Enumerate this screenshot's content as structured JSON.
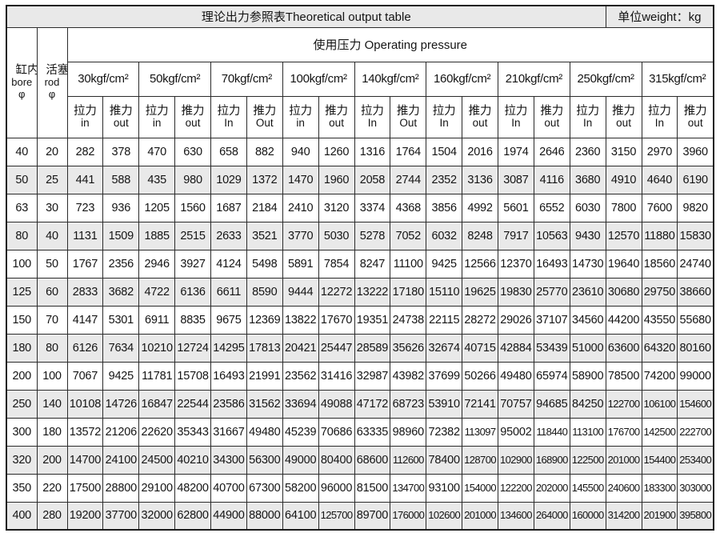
{
  "header": {
    "title": "理论出力参照表Theoretical output table",
    "unit_label": "单位weight：kg"
  },
  "table": {
    "bore_cn": "缸内径",
    "bore_en": "bore",
    "bore_sym": "φ",
    "rod_cn": "活塞杆",
    "rod_en": "rod",
    "rod_sym": "φ",
    "pressure_header": "使用压力 Operating pressure",
    "pressure_groups": [
      {
        "label": "30kgf/cm²",
        "pull": "拉力",
        "pull_sub": "in",
        "push": "推力",
        "push_sub": "out"
      },
      {
        "label": "50kgf/cm²",
        "pull": "拉力",
        "pull_sub": "in",
        "push": "推力",
        "push_sub": "out"
      },
      {
        "label": "70kgf/cm²",
        "pull": "拉力",
        "pull_sub": "In",
        "push": "推力",
        "push_sub": "Out"
      },
      {
        "label": "100kgf/cm²",
        "pull": "拉力",
        "pull_sub": "in",
        "push": "推力",
        "push_sub": "out"
      },
      {
        "label": "140kgf/cm²",
        "pull": "拉力",
        "pull_sub": "In",
        "push": "推力",
        "push_sub": "Out"
      },
      {
        "label": "160kgf/cm²",
        "pull": "拉力",
        "pull_sub": "In",
        "push": "推力",
        "push_sub": "out"
      },
      {
        "label": "210kgf/cm²",
        "pull": "拉力",
        "pull_sub": "In",
        "push": "推力",
        "push_sub": "out"
      },
      {
        "label": "250kgf/cm²",
        "pull": "拉力",
        "pull_sub": "In",
        "push": "推力",
        "push_sub": "out"
      },
      {
        "label": "315kgf/cm²",
        "pull": "拉力",
        "pull_sub": "In",
        "push": "推力",
        "push_sub": "out"
      }
    ],
    "rows": [
      {
        "bore": "40",
        "rod": "20",
        "values": [
          "282",
          "378",
          "470",
          "630",
          "658",
          "882",
          "940",
          "1260",
          "1316",
          "1764",
          "1504",
          "2016",
          "1974",
          "2646",
          "2360",
          "3150",
          "2970",
          "3960"
        ]
      },
      {
        "bore": "50",
        "rod": "25",
        "values": [
          "441",
          "588",
          "435",
          "980",
          "1029",
          "1372",
          "1470",
          "1960",
          "2058",
          "2744",
          "2352",
          "3136",
          "3087",
          "4116",
          "3680",
          "4910",
          "4640",
          "6190"
        ]
      },
      {
        "bore": "63",
        "rod": "30",
        "values": [
          "723",
          "936",
          "1205",
          "1560",
          "1687",
          "2184",
          "2410",
          "3120",
          "3374",
          "4368",
          "3856",
          "4992",
          "5601",
          "6552",
          "6030",
          "7800",
          "7600",
          "9820"
        ]
      },
      {
        "bore": "80",
        "rod": "40",
        "values": [
          "1131",
          "1509",
          "1885",
          "2515",
          "2633",
          "3521",
          "3770",
          "5030",
          "5278",
          "7052",
          "6032",
          "8248",
          "7917",
          "10563",
          "9430",
          "12570",
          "11880",
          "15830"
        ]
      },
      {
        "bore": "100",
        "rod": "50",
        "values": [
          "1767",
          "2356",
          "2946",
          "3927",
          "4124",
          "5498",
          "5891",
          "7854",
          "8247",
          "11100",
          "9425",
          "12566",
          "12370",
          "16493",
          "14730",
          "19640",
          "18560",
          "24740"
        ]
      },
      {
        "bore": "125",
        "rod": "60",
        "values": [
          "2833",
          "3682",
          "4722",
          "6136",
          "6611",
          "8590",
          "9444",
          "12272",
          "13222",
          "17180",
          "15110",
          "19625",
          "19830",
          "25770",
          "23610",
          "30680",
          "29750",
          "38660"
        ]
      },
      {
        "bore": "150",
        "rod": "70",
        "values": [
          "4147",
          "5301",
          "6911",
          "8835",
          "9675",
          "12369",
          "13822",
          "17670",
          "19351",
          "24738",
          "22115",
          "28272",
          "29026",
          "37107",
          "34560",
          "44200",
          "43550",
          "55680"
        ]
      },
      {
        "bore": "180",
        "rod": "80",
        "values": [
          "6126",
          "7634",
          "10210",
          "12724",
          "14295",
          "17813",
          "20421",
          "25447",
          "28589",
          "35626",
          "32674",
          "40715",
          "42884",
          "53439",
          "51000",
          "63600",
          "64320",
          "80160"
        ]
      },
      {
        "bore": "200",
        "rod": "100",
        "values": [
          "7067",
          "9425",
          "11781",
          "15708",
          "16493",
          "21991",
          "23562",
          "31416",
          "32987",
          "43982",
          "37699",
          "50266",
          "49480",
          "65974",
          "58900",
          "78500",
          "74200",
          "99000"
        ]
      },
      {
        "bore": "250",
        "rod": "140",
        "values": [
          "10108",
          "14726",
          "16847",
          "22544",
          "23586",
          "31562",
          "33694",
          "49088",
          "47172",
          "68723",
          "53910",
          "72141",
          "70757",
          "94685",
          "84250",
          "122700",
          "106100",
          "154600"
        ]
      },
      {
        "bore": "300",
        "rod": "180",
        "values": [
          "13572",
          "21206",
          "22620",
          "35343",
          "31667",
          "49480",
          "45239",
          "70686",
          "63335",
          "98960",
          "72382",
          "113097",
          "95002",
          "118440",
          "113100",
          "176700",
          "142500",
          "222700"
        ]
      },
      {
        "bore": "320",
        "rod": "200",
        "values": [
          "14700",
          "24100",
          "24500",
          "40210",
          "34300",
          "56300",
          "49000",
          "80400",
          "68600",
          "112600",
          "78400",
          "128700",
          "102900",
          "168900",
          "122500",
          "201000",
          "154400",
          "253400"
        ]
      },
      {
        "bore": "350",
        "rod": "220",
        "values": [
          "17500",
          "28800",
          "29100",
          "48200",
          "40700",
          "67300",
          "58200",
          "96000",
          "81500",
          "134700",
          "93100",
          "154000",
          "122200",
          "202000",
          "145500",
          "240600",
          "183300",
          "303000"
        ]
      },
      {
        "bore": "400",
        "rod": "280",
        "values": [
          "19200",
          "37700",
          "32000",
          "62800",
          "44900",
          "88000",
          "64100",
          "125700",
          "89700",
          "176000",
          "102600",
          "201000",
          "134600",
          "264000",
          "160000",
          "314200",
          "201900",
          "395800"
        ]
      }
    ]
  },
  "colors": {
    "header_fill": "#e9e9e9",
    "row_alt_fill": "#e9e9e9",
    "border": "#2b2b2b"
  }
}
